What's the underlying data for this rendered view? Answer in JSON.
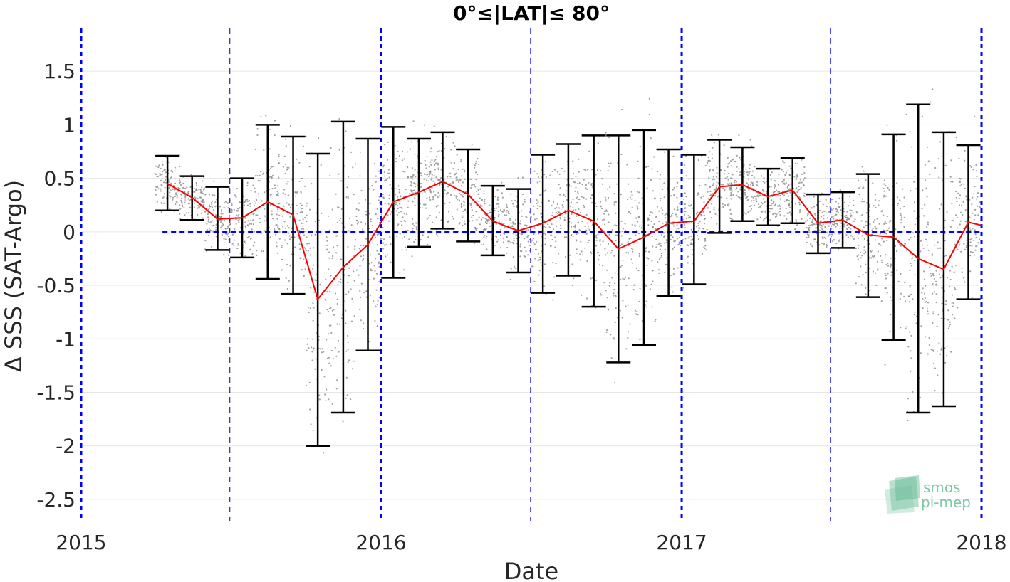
{
  "chart_data": {
    "type": "scatter",
    "title": "0°≤|LAT|≤ 80°",
    "xlabel": "Date",
    "ylabel": "Δ SSS (SAT-Argo)",
    "xlim": [
      "2015-01-01",
      "2018-01-01"
    ],
    "ylim": [
      -2.7,
      1.9
    ],
    "xticks": [
      "2015",
      "2016",
      "2017",
      "2018"
    ],
    "yticks": [
      "1.5",
      "1",
      "0.5",
      "0",
      "-0.5",
      "-1",
      "-1.5",
      "-2",
      "-2.5"
    ],
    "grid": true,
    "colors": {
      "mean_line": "#ff0000",
      "error_bars": "#000000",
      "points": "#8c8c8c",
      "reference_lines": "#0000ff"
    },
    "zero_line": 0,
    "year_lines": [
      "2015-01-01",
      "2016-01-01",
      "2017-01-01",
      "2018-01-01"
    ],
    "midyear_lines": [
      "2015-07-01",
      "2016-07-01",
      "2017-07-01"
    ],
    "series": [
      {
        "style": "red line with black error bars",
        "x": [
          "2015-04-16",
          "2015-05-16",
          "2015-06-16",
          "2015-07-16",
          "2015-08-16",
          "2015-09-16",
          "2015-10-16",
          "2015-11-16",
          "2015-12-16",
          "2016-01-16",
          "2016-02-16",
          "2016-03-16",
          "2016-04-16",
          "2016-05-16",
          "2016-06-16",
          "2016-07-16",
          "2016-08-16",
          "2016-09-16",
          "2016-10-16",
          "2016-11-16",
          "2016-12-16",
          "2017-01-16",
          "2017-02-16",
          "2017-03-16",
          "2017-04-16",
          "2017-05-16",
          "2017-06-16",
          "2017-07-16",
          "2017-08-16",
          "2017-09-16",
          "2017-10-16",
          "2017-11-16",
          "2017-12-16"
        ],
        "mean": [
          0.45,
          0.32,
          0.12,
          0.13,
          0.28,
          0.16,
          -0.63,
          -0.33,
          -0.12,
          0.28,
          0.37,
          0.47,
          0.35,
          0.1,
          0.01,
          0.08,
          0.2,
          0.1,
          -0.16,
          -0.05,
          0.08,
          0.1,
          0.42,
          0.44,
          0.33,
          0.39,
          0.08,
          0.11,
          -0.03,
          -0.05,
          -0.25,
          -0.35,
          0.09
        ],
        "lower": [
          0.2,
          0.11,
          -0.17,
          -0.24,
          -0.44,
          -0.58,
          -2.0,
          -1.69,
          -1.11,
          -0.43,
          -0.14,
          0.03,
          -0.09,
          -0.22,
          -0.38,
          -0.57,
          -0.41,
          -0.7,
          -1.22,
          -1.06,
          -0.6,
          -0.49,
          -0.01,
          0.1,
          0.06,
          0.08,
          -0.2,
          -0.15,
          -0.61,
          -1.01,
          -1.69,
          -1.63,
          -0.63
        ],
        "upper": [
          0.71,
          0.52,
          0.42,
          0.5,
          1.0,
          0.89,
          0.73,
          1.03,
          0.87,
          0.98,
          0.87,
          0.93,
          0.77,
          0.43,
          0.4,
          0.72,
          0.82,
          0.9,
          0.9,
          0.95,
          0.77,
          0.72,
          0.86,
          0.79,
          0.59,
          0.69,
          0.35,
          0.37,
          0.54,
          0.91,
          1.19,
          0.93,
          0.81
        ]
      }
    ]
  },
  "logo": {
    "line1": "smos",
    "line2": "pi-mep",
    "color": "#7fc7a6"
  }
}
